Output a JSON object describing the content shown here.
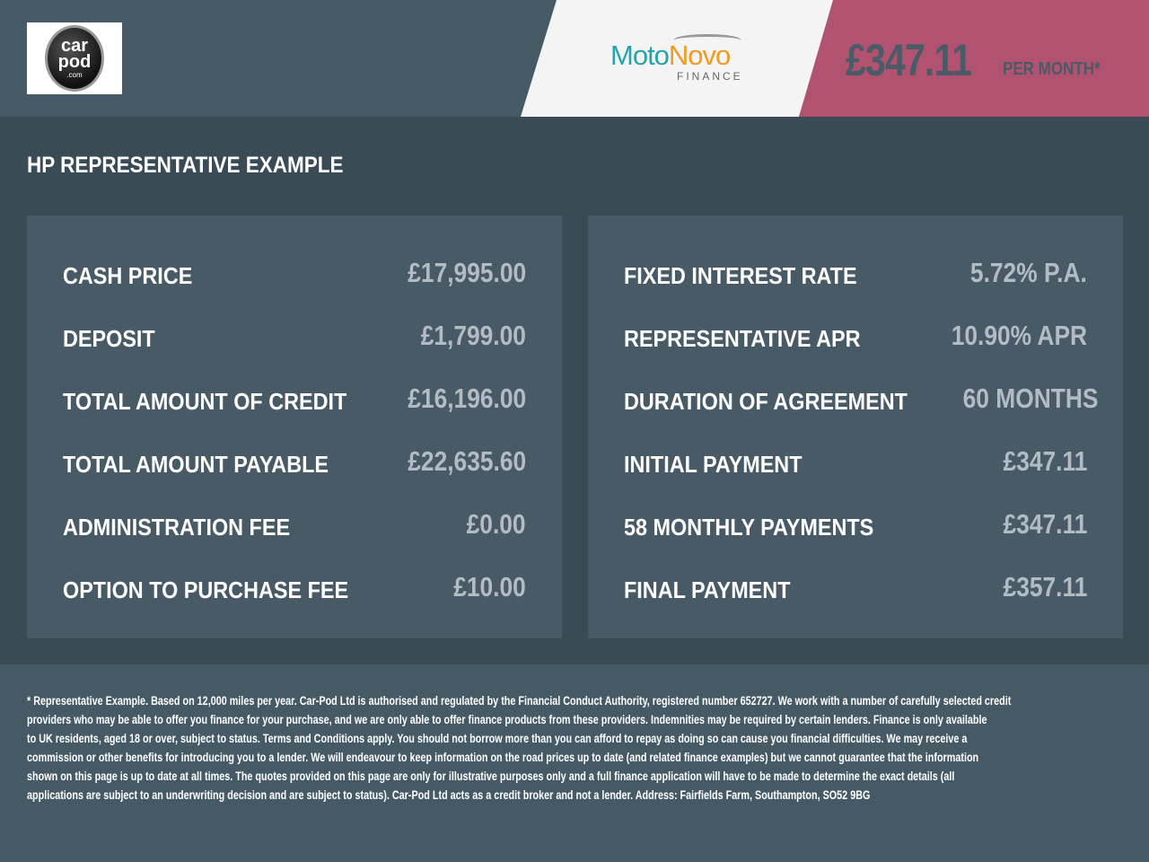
{
  "header": {
    "logo": {
      "line1": "car",
      "line2": "pod",
      "line3": ".com"
    },
    "lender_logo": {
      "moto": "Moto",
      "novo": "Novo",
      "finance": "FINANCE"
    },
    "monthly_price": "£347.11",
    "per_month_label": "PER MONTH*",
    "colors": {
      "header_bg": "#465a66",
      "price_bg": "#b05270",
      "moto_teal": "#27a3ad",
      "novo_orange": "#f29a1f"
    }
  },
  "section_title": "HP REPRESENTATIVE EXAMPLE",
  "left_rows": [
    {
      "label": "CASH PRICE",
      "value": "£17,995.00"
    },
    {
      "label": "DEPOSIT",
      "value": "£1,799.00"
    },
    {
      "label": "TOTAL AMOUNT OF CREDIT",
      "value": "£16,196.00"
    },
    {
      "label": "TOTAL AMOUNT PAYABLE",
      "value": "£22,635.60"
    },
    {
      "label": "ADMINISTRATION FEE",
      "value": "£0.00"
    },
    {
      "label": "OPTION TO PURCHASE FEE",
      "value": "£10.00"
    }
  ],
  "right_rows": [
    {
      "label": "FIXED INTEREST RATE",
      "value": "5.72% P.A."
    },
    {
      "label": "REPRESENTATIVE APR",
      "value": "10.90% APR"
    },
    {
      "label": "DURATION OF AGREEMENT",
      "value": "60 MONTHS"
    },
    {
      "label": "INITIAL PAYMENT",
      "value": "£347.11"
    },
    {
      "label": "58 MONTHLY PAYMENTS",
      "value": "£347.11"
    },
    {
      "label": "FINAL PAYMENT",
      "value": "£357.11"
    }
  ],
  "disclaimer_lines": [
    "* Representative Example. Based on 12,000 miles per year. Car-Pod Ltd is authorised and regulated by the Financial Conduct Authority, registered number 652727. We work with a number of carefully selected credit",
    "providers who may be able to offer you finance for your purchase, and we are only able to offer finance products from these providers. Indemnities may be required by certain lenders. Finance is only available",
    "to UK residents, aged 18 or over, subject to status. Terms and Conditions apply. You should not borrow more than you can afford to repay as doing so can cause you financial difficulties. We may receive a",
    "commission or other benefits for introducing you to a lender. We will endeavour to keep information on the road prices up to date (and related finance examples) but we cannot guarantee that the information",
    "shown on this page is up to date at all times. The quotes provided on this page are only for illustrative purposes only and a full finance application will have to be made to determine the exact details (all",
    "applications are subject to an underwriting decision and are subject to status). Car-Pod Ltd acts as a credit broker and not a lender. Address: Fairfields Farm, Southampton, SO52 9BG"
  ]
}
